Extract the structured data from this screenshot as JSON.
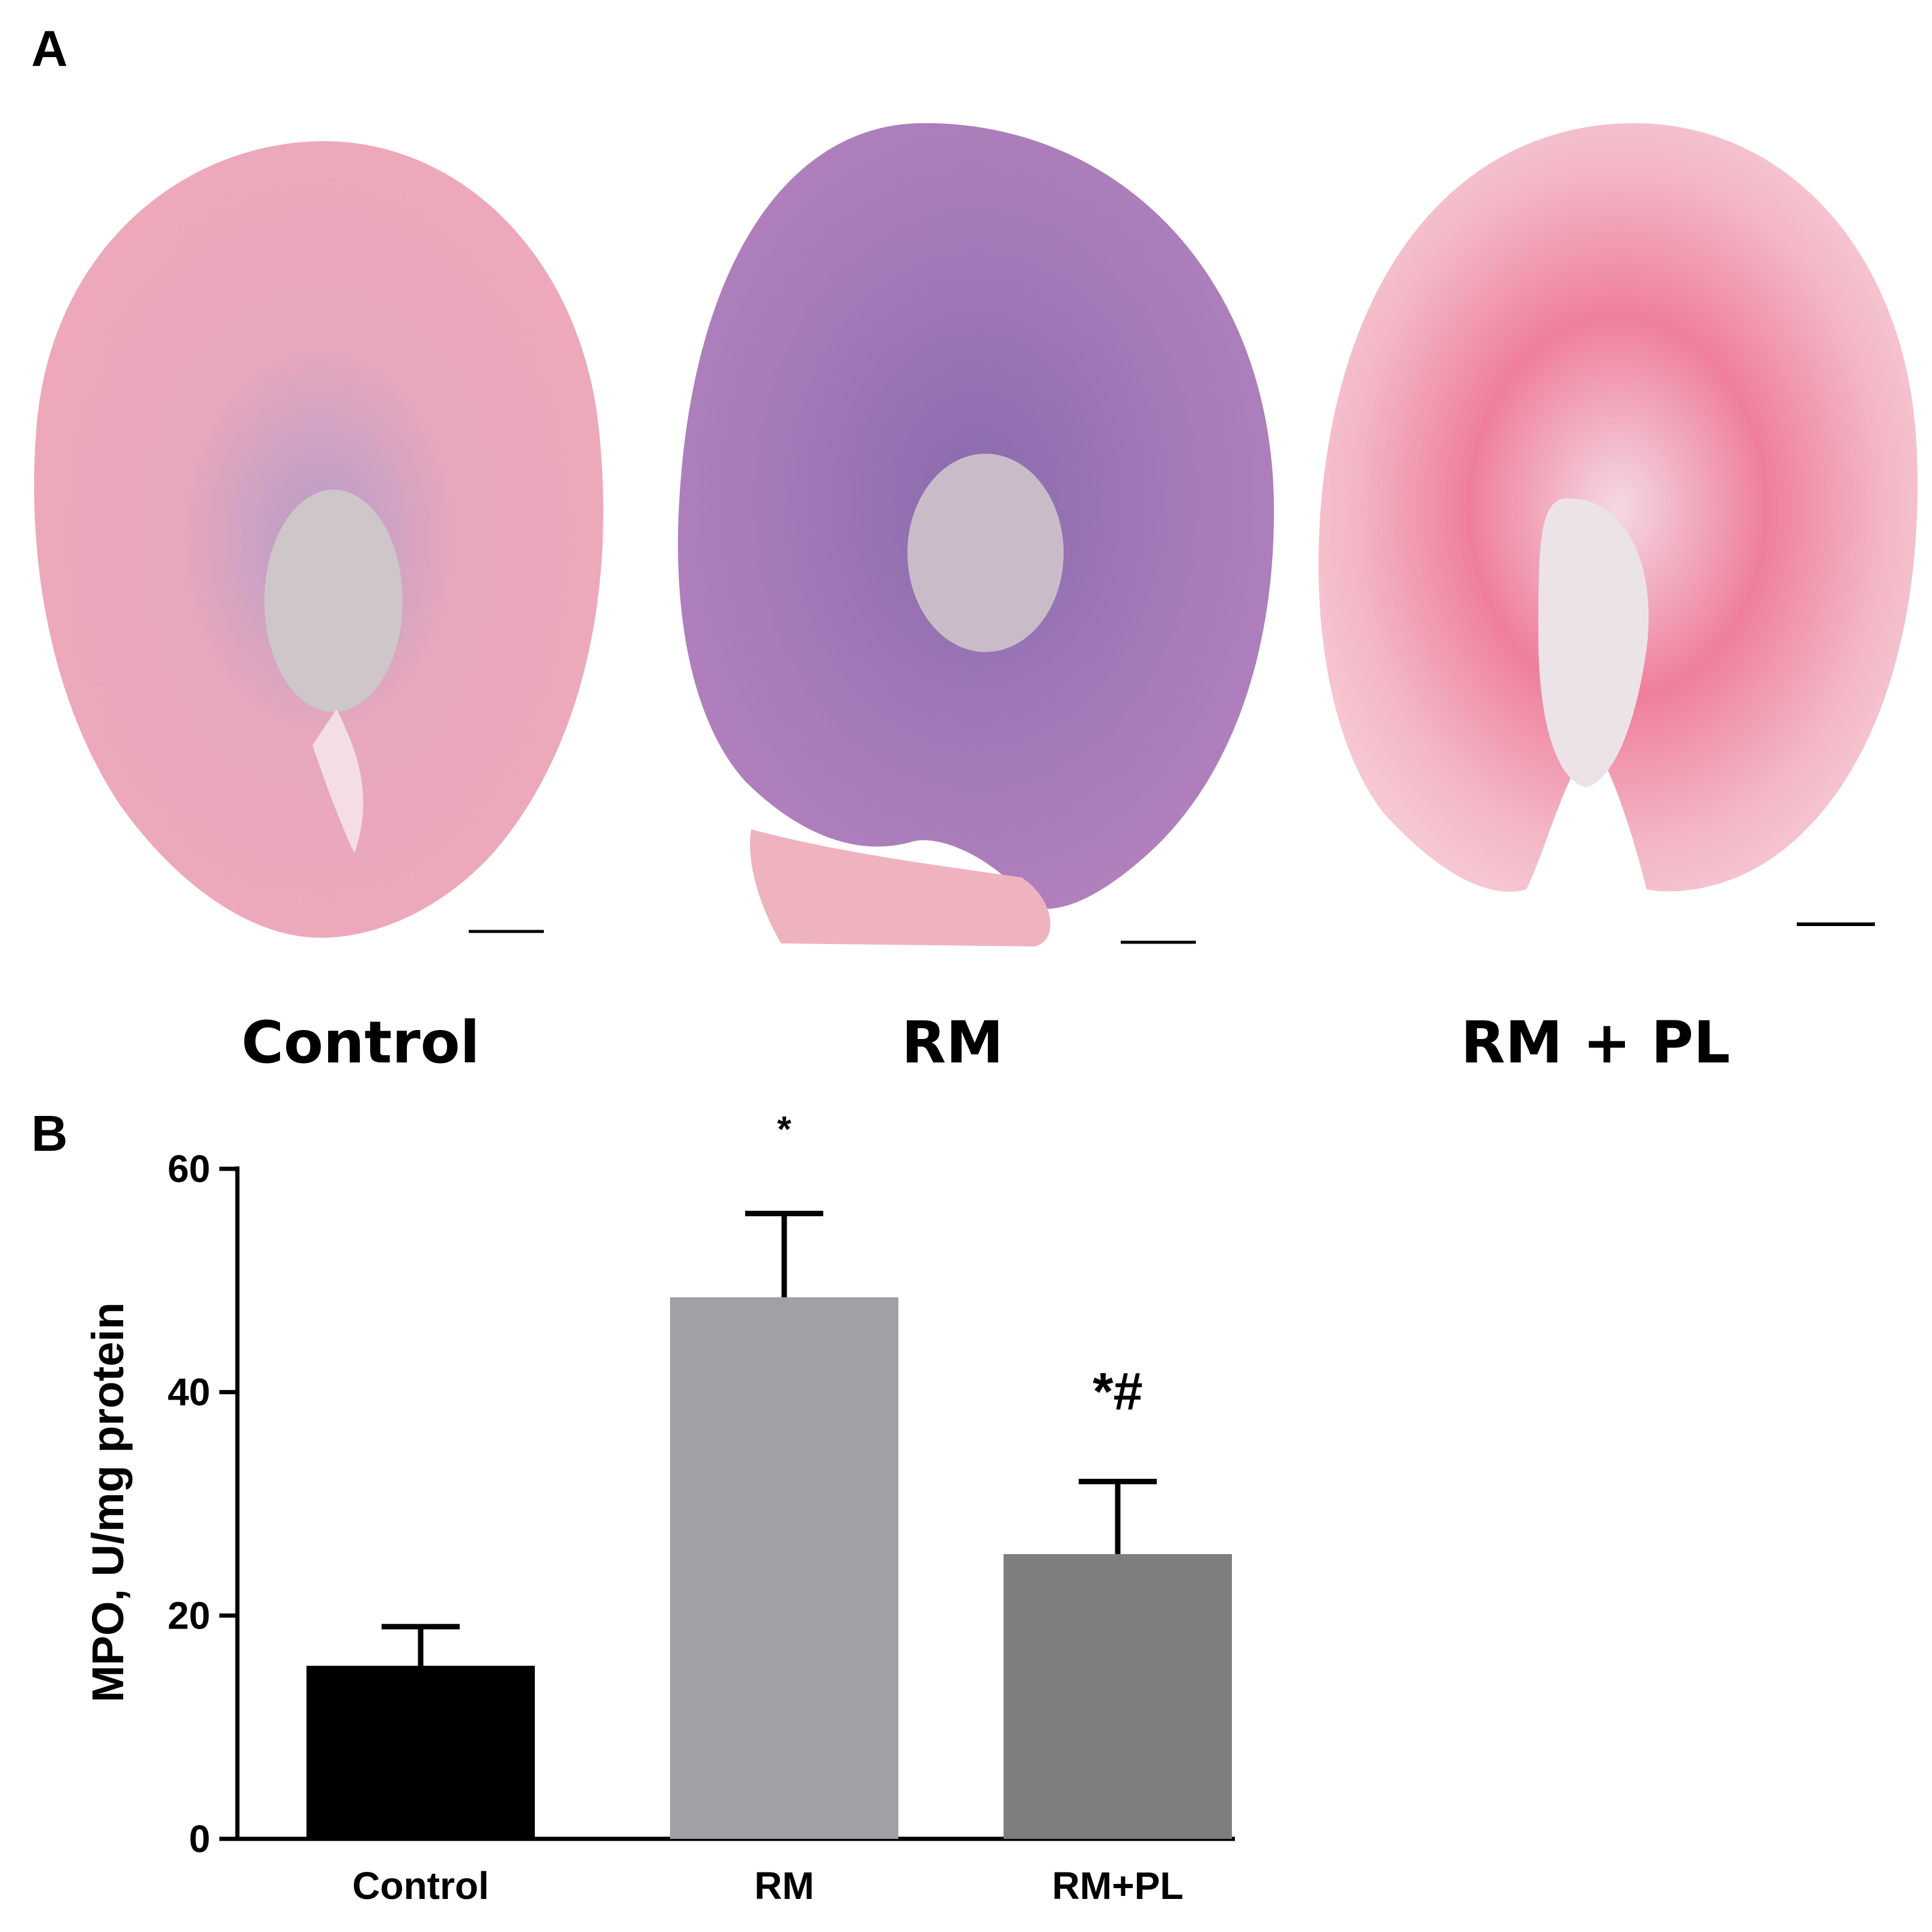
{
  "panel_a": {
    "letter": "A",
    "images": [
      {
        "label": "Control"
      },
      {
        "label": "RM"
      },
      {
        "label": "RM + PL"
      }
    ]
  },
  "panel_b": {
    "letter": "B"
  },
  "colors": {
    "control_bar": "#000000",
    "rm_bar": "#a0a1a4",
    "rmpl_bar": "#7d7e80",
    "tissue_pink": "#eaa0b2",
    "tissue_purple": "#9a79b6",
    "tissue_bright_pink": "#ef7f9c"
  },
  "chart_data": {
    "type": "bar",
    "categories": [
      "Control",
      "RM",
      "RM+PL"
    ],
    "values": [
      15.5,
      48.5,
      25.5
    ],
    "errors": [
      3.5,
      7.5,
      6.5
    ],
    "annotations": [
      "",
      "*",
      "*#"
    ],
    "ylabel": "MPO, U/mg protein",
    "xlabel": "",
    "ylim": [
      0,
      60
    ],
    "yticks": [
      "0",
      "20",
      "40",
      "60"
    ],
    "grid": false
  }
}
